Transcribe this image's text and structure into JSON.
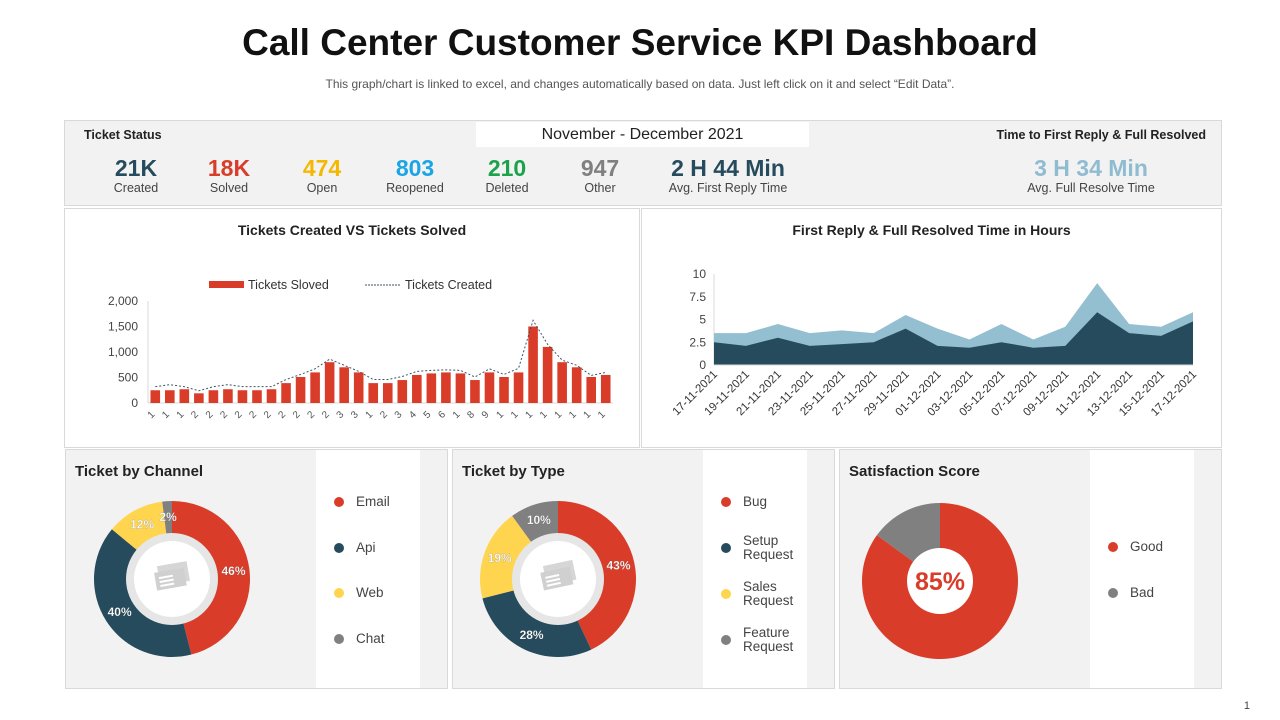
{
  "header": {
    "title": "Call Center Customer Service KPI Dashboard",
    "subtitle": "This graph/chart is linked to excel, and changes automatically based on data. Just left click on it and select “Edit Data”."
  },
  "kpi": {
    "left_label": "Ticket  Status",
    "period": "November - December 2021",
    "right_label": "Time to First Reply & Full Resolved",
    "items": [
      {
        "value": "21K",
        "label": "Created",
        "color": "#264b5d"
      },
      {
        "value": "18K",
        "label": "Solved",
        "color": "#d93d2a"
      },
      {
        "value": "474",
        "label": "Open",
        "color": "#f5b800"
      },
      {
        "value": "803",
        "label": "Reopened",
        "color": "#1aa5e6"
      },
      {
        "value": "210",
        "label": "Deleted",
        "color": "#1aa34a"
      },
      {
        "value": "947",
        "label": "Other",
        "color": "#808080"
      },
      {
        "value": "2 H 44 Min",
        "label": "Avg.  First Reply Time",
        "color": "#264b5d"
      },
      {
        "value": "3 H 34 Min",
        "label": "Avg.  Full Resolve Time",
        "color": "#8fbcd0"
      }
    ]
  },
  "chart_data": [
    {
      "type": "bar",
      "title": "Tickets Created  VS Tickets Solved",
      "ylim": [
        0,
        2000
      ],
      "yticks": [
        "0",
        "500",
        "1,000",
        "1,500",
        "2,000"
      ],
      "categories": [
        "1",
        "1",
        "1",
        "2",
        "2",
        "2",
        "2",
        "2",
        "2",
        "2",
        "2",
        "2",
        "2",
        "3",
        "3",
        "1",
        "2",
        "3",
        "4",
        "5",
        "6",
        "1",
        "8",
        "9",
        "1",
        "1",
        "1",
        "1",
        "1",
        "1",
        "1",
        "1"
      ],
      "series": [
        {
          "name": "Tickets Sloved",
          "style": "bar",
          "color": "#d93d2a",
          "values": [
            250,
            250,
            270,
            190,
            250,
            270,
            250,
            250,
            270,
            390,
            510,
            600,
            800,
            700,
            600,
            390,
            390,
            450,
            550,
            580,
            600,
            580,
            450,
            600,
            510,
            600,
            1500,
            1100,
            800,
            700,
            510,
            550
          ]
        },
        {
          "name": "Tickets Created",
          "style": "dashed-line",
          "color": "#3d5566",
          "values": [
            320,
            360,
            320,
            240,
            320,
            360,
            320,
            320,
            320,
            460,
            560,
            670,
            860,
            740,
            620,
            460,
            460,
            520,
            620,
            640,
            650,
            640,
            510,
            670,
            560,
            680,
            1620,
            1150,
            840,
            740,
            540,
            600
          ]
        }
      ],
      "legend": "top"
    },
    {
      "type": "area",
      "title": "First Reply & Full Resolved Time in Hours",
      "ylim": [
        0,
        10
      ],
      "yticks": [
        "0",
        "2.5",
        "5",
        "7.5",
        "10"
      ],
      "x": [
        "17-11-2021",
        "19-11-2021",
        "21-11-2021",
        "23-11-2021",
        "25-11-2021",
        "27-11-2021",
        "29-11-2021",
        "01-12-2021",
        "03-12-2021",
        "05-12-2021",
        "07-12-2021",
        "09-12-2021",
        "11-12-2021",
        "13-12-2021",
        "15-12-2021",
        "17-12-2021"
      ],
      "series": [
        {
          "color": "#264b5d",
          "values": [
            2.5,
            2.1,
            3,
            2.1,
            2.3,
            2.5,
            4,
            2.1,
            1.9,
            2.5,
            1.9,
            2.1,
            5.8,
            3.5,
            3.2,
            4.8
          ]
        },
        {
          "color": "#93bfd0",
          "values": [
            3.5,
            3.5,
            4.5,
            3.5,
            3.8,
            3.5,
            5.5,
            4,
            2.8,
            4.5,
            2.8,
            4.2,
            9,
            4.5,
            4.2,
            5.8
          ]
        }
      ]
    },
    {
      "type": "pie",
      "title": "Ticket by Channel",
      "donut": true,
      "slices": [
        {
          "label": "Email",
          "value": 46,
          "text": "46%",
          "color": "#d93d2a"
        },
        {
          "label": "Api",
          "value": 40,
          "text": "40%",
          "color": "#264b5d"
        },
        {
          "label": "Web",
          "value": 12,
          "text": "12%",
          "color": "#ffd54f"
        },
        {
          "label": "Chat",
          "value": 2,
          "text": "2%",
          "color": "#808080"
        }
      ]
    },
    {
      "type": "pie",
      "title": "Ticket by Type",
      "donut": true,
      "slices": [
        {
          "label": "Bug",
          "value": 43,
          "text": "43%",
          "color": "#d93d2a"
        },
        {
          "label": "Setup Request",
          "value": 28,
          "text": "28%",
          "color": "#264b5d"
        },
        {
          "label": "Sales Request",
          "value": 19,
          "text": "19%",
          "color": "#ffd54f"
        },
        {
          "label": "Feature Request",
          "value": 10,
          "text": "10%",
          "color": "#808080"
        }
      ]
    },
    {
      "type": "pie",
      "title": "Satisfaction Score",
      "center_text": "85%",
      "slices": [
        {
          "label": "Good",
          "value": 85,
          "color": "#d93d2a"
        },
        {
          "label": "Bad",
          "value": 15,
          "color": "#808080"
        }
      ]
    }
  ],
  "page_number": "1"
}
